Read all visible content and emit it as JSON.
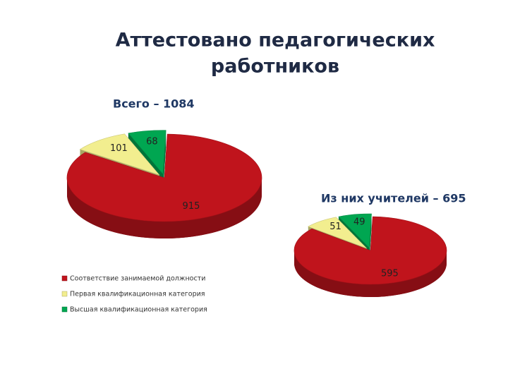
{
  "title": [
    "Аттестовано педагогических",
    "работников"
  ],
  "chart_data": [
    {
      "type": "pie",
      "title": "Всего – 1084",
      "categories": [
        "Соответствие занимаемой должности",
        "Первая квалификационная категория",
        "Высшая квалификационная категория"
      ],
      "values": [
        915,
        101,
        68
      ],
      "colors": [
        "#c0141c",
        "#f2ee8f",
        "#00a651"
      ]
    },
    {
      "type": "pie",
      "title": "Из них учителей – 695",
      "values": [
        595,
        51,
        49
      ],
      "colors": [
        "#c0141c",
        "#f2ee8f",
        "#00a651"
      ]
    }
  ]
}
